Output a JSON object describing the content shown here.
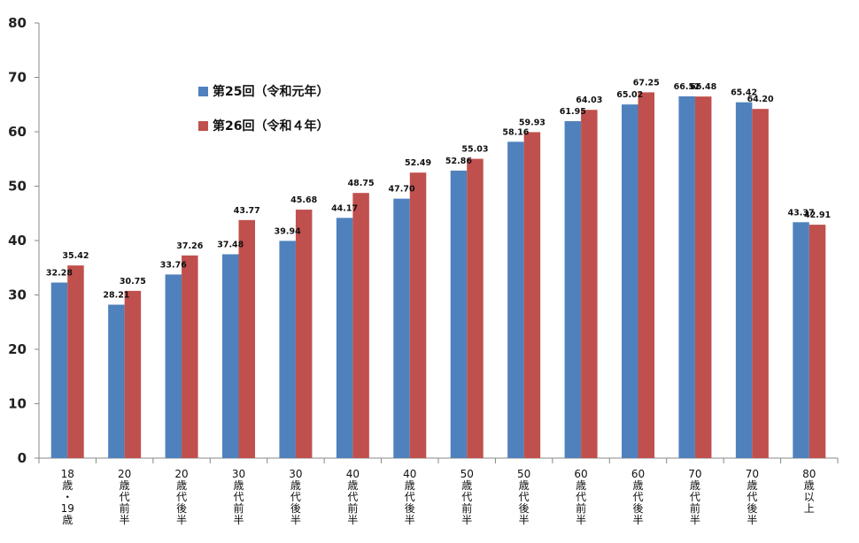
{
  "chart_data": {
    "type": "bar",
    "categories": [
      "18歳・19歳",
      "20歳代前半",
      "20歳代後半",
      "30歳代前半",
      "30歳代後半",
      "40歳代前半",
      "40歳代後半",
      "50歳代前半",
      "50歳代後半",
      "60歳代前半",
      "60歳代後半",
      "70歳代前半",
      "70歳代後半",
      "80歳以上"
    ],
    "series": [
      {
        "name": "第25回（令和元年）",
        "color": "#4F81BD",
        "values": [
          32.28,
          28.21,
          33.76,
          37.48,
          39.94,
          44.17,
          47.7,
          52.86,
          58.16,
          61.95,
          65.02,
          66.52,
          65.42,
          43.37
        ]
      },
      {
        "name": "第26回（令和４年）",
        "color": "#C0504D",
        "values": [
          35.42,
          30.75,
          37.26,
          43.77,
          45.68,
          48.75,
          52.49,
          55.03,
          59.93,
          64.03,
          67.25,
          66.48,
          64.2,
          42.91
        ]
      }
    ],
    "value_labels": [
      [
        "32.28",
        "28.21",
        "33.76",
        "37.48",
        "39.94",
        "44.17",
        "47.70",
        "52.86",
        "58.16",
        "61.95",
        "65.02",
        "66.52",
        "65.42",
        "43.37"
      ],
      [
        "35.42",
        "30.75",
        "37.26",
        "43.77",
        "45.68",
        "48.75",
        "52.49",
        "55.03",
        "59.93",
        "64.03",
        "67.25",
        "66.48",
        "64.20",
        "42.91"
      ]
    ],
    "yticks": [
      "0",
      "10",
      "20",
      "30",
      "40",
      "50",
      "60",
      "70",
      "80"
    ],
    "ylim": [
      0,
      80
    ],
    "legend_position": "top-left",
    "grid": false
  }
}
